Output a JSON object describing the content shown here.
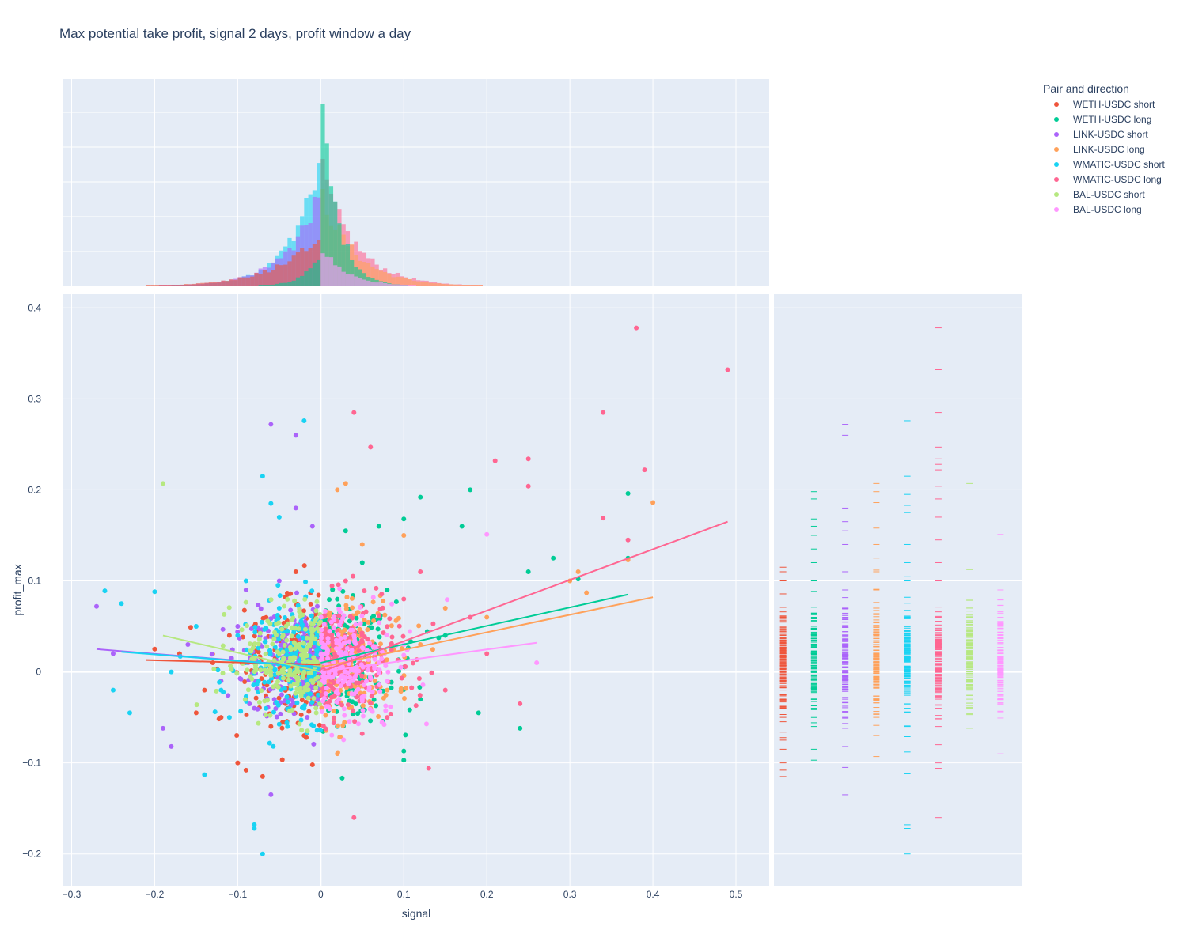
{
  "title": "Max potential take profit, signal 2 days, profit window a day",
  "legend": {
    "title": "Pair and direction",
    "items": [
      {
        "label": "WETH-USDC short",
        "color": "#EF553B"
      },
      {
        "label": "WETH-USDC long",
        "color": "#00CC96"
      },
      {
        "label": "LINK-USDC short",
        "color": "#AB63FA"
      },
      {
        "label": "LINK-USDC long",
        "color": "#FFA15A"
      },
      {
        "label": "WMATIC-USDC short",
        "color": "#19D3F3"
      },
      {
        "label": "WMATIC-USDC long",
        "color": "#FF6692"
      },
      {
        "label": "BAL-USDC short",
        "color": "#B6E880"
      },
      {
        "label": "BAL-USDC long",
        "color": "#FF97FF"
      }
    ]
  },
  "chart_data": {
    "type": "scatter",
    "xlabel": "signal",
    "ylabel": "profit_max",
    "xlim": [
      -0.31,
      0.54
    ],
    "ylim": [
      -0.235,
      0.415
    ],
    "xticks": [
      "−0.3",
      "−0.2",
      "−0.1",
      "0",
      "0.1",
      "0.2",
      "0.3",
      "0.4",
      "0.5"
    ],
    "xtick_values": [
      -0.3,
      -0.2,
      -0.1,
      0,
      0.1,
      0.2,
      0.3,
      0.4,
      0.5
    ],
    "yticks": [
      "−0.2",
      "−0.1",
      "0",
      "0.1",
      "0.2",
      "0.3",
      "0.4"
    ],
    "ytick_values": [
      -0.2,
      -0.1,
      0,
      0.1,
      0.2,
      0.3,
      0.4
    ],
    "grid": true,
    "marginal_x": "histogram",
    "marginal_y": "rug",
    "series": [
      {
        "name": "WETH-USDC short",
        "color": "#EF553B",
        "side": "short",
        "trend": [
          [
            -0.21,
            0.013
          ],
          [
            0.0,
            0.008
          ]
        ],
        "points": [
          [
            -0.2,
            0.025
          ],
          [
            -0.17,
            0.02
          ],
          [
            -0.15,
            -0.045
          ],
          [
            -0.12,
            -0.05
          ],
          [
            -0.1,
            -0.1
          ],
          [
            -0.09,
            -0.108
          ],
          [
            -0.07,
            -0.115
          ],
          [
            -0.06,
            -0.06
          ],
          [
            -0.04,
            -0.04
          ],
          [
            -0.03,
            0.11
          ],
          [
            -0.02,
            -0.07
          ],
          [
            -0.01,
            -0.102
          ],
          [
            -0.11,
            0.04
          ],
          [
            -0.08,
            0.03
          ],
          [
            -0.05,
            0.06
          ],
          [
            -0.13,
            0.01
          ],
          [
            -0.09,
            -0.03
          ],
          [
            -0.02,
            0.02
          ],
          [
            -0.06,
            -0.01
          ],
          [
            -0.14,
            -0.02
          ],
          [
            -0.04,
            0.085
          ]
        ],
        "rug": [
          0.115,
          0.11,
          0.1,
          0.08,
          0.06,
          0.04,
          0.02,
          0.0,
          -0.02,
          -0.04,
          -0.05,
          -0.075,
          -0.085,
          -0.1,
          -0.108,
          -0.115
        ]
      },
      {
        "name": "WETH-USDC long",
        "color": "#00CC96",
        "side": "long",
        "trend": [
          [
            0.0,
            0.01
          ],
          [
            0.37,
            0.085
          ]
        ],
        "points": [
          [
            0.37,
            0.196
          ],
          [
            0.37,
            0.125
          ],
          [
            0.31,
            0.102
          ],
          [
            0.28,
            0.125
          ],
          [
            0.25,
            0.11
          ],
          [
            0.24,
            -0.062
          ],
          [
            0.17,
            0.16
          ],
          [
            0.12,
            0.192
          ],
          [
            0.1,
            0.168
          ],
          [
            0.1,
            -0.087
          ],
          [
            0.1,
            -0.097
          ],
          [
            0.07,
            0.16
          ],
          [
            0.03,
            0.155
          ],
          [
            0.18,
            0.2
          ],
          [
            0.19,
            -0.045
          ],
          [
            0.15,
            0.04
          ],
          [
            0.12,
            -0.03
          ],
          [
            0.05,
            0.12
          ],
          [
            0.08,
            0.09
          ],
          [
            0.02,
            -0.06
          ],
          [
            0.06,
            0.03
          ]
        ],
        "rug": [
          0.198,
          0.19,
          0.168,
          0.16,
          0.15,
          0.135,
          0.12,
          0.1,
          0.08,
          0.06,
          0.04,
          0.02,
          0.0,
          -0.02,
          -0.04,
          -0.06,
          -0.085,
          -0.097
        ]
      },
      {
        "name": "LINK-USDC short",
        "color": "#AB63FA",
        "side": "short",
        "trend": [
          [
            -0.27,
            0.025
          ],
          [
            0.0,
            0.005
          ]
        ],
        "points": [
          [
            -0.27,
            0.072
          ],
          [
            -0.25,
            0.02
          ],
          [
            -0.19,
            -0.062
          ],
          [
            -0.18,
            -0.082
          ],
          [
            -0.06,
            0.272
          ],
          [
            -0.03,
            0.26
          ],
          [
            -0.06,
            -0.135
          ],
          [
            -0.03,
            0.18
          ],
          [
            -0.01,
            0.16
          ],
          [
            -0.1,
            0.05
          ],
          [
            -0.08,
            -0.04
          ],
          [
            -0.05,
            0.1
          ],
          [
            -0.12,
            -0.01
          ],
          [
            -0.04,
            -0.03
          ],
          [
            -0.02,
            0.06
          ],
          [
            -0.16,
            0.03
          ],
          [
            -0.09,
            0.09
          ]
        ],
        "rug": [
          0.272,
          0.26,
          0.18,
          0.165,
          0.155,
          0.14,
          0.11,
          0.09,
          0.07,
          0.05,
          0.03,
          0.01,
          -0.01,
          -0.03,
          -0.05,
          -0.062,
          -0.082,
          -0.105,
          -0.135
        ]
      },
      {
        "name": "LINK-USDC long",
        "color": "#FFA15A",
        "side": "long",
        "trend": [
          [
            0.0,
            0.005
          ],
          [
            0.4,
            0.082
          ]
        ],
        "points": [
          [
            0.4,
            0.186
          ],
          [
            0.37,
            0.123
          ],
          [
            0.31,
            0.11
          ],
          [
            0.3,
            0.1
          ],
          [
            0.32,
            0.087
          ],
          [
            0.03,
            0.207
          ],
          [
            0.02,
            0.2
          ],
          [
            0.1,
            0.15
          ],
          [
            0.05,
            0.14
          ],
          [
            0.15,
            0.07
          ],
          [
            0.08,
            -0.02
          ],
          [
            0.04,
            0.05
          ],
          [
            0.12,
            0.03
          ],
          [
            0.06,
            -0.04
          ],
          [
            0.2,
            0.06
          ],
          [
            0.02,
            -0.09
          ]
        ],
        "rug": [
          0.207,
          0.198,
          0.186,
          0.158,
          0.14,
          0.125,
          0.11,
          0.09,
          0.07,
          0.05,
          0.03,
          0.01,
          -0.01,
          -0.03,
          -0.05,
          -0.07,
          -0.093
        ]
      },
      {
        "name": "WMATIC-USDC short",
        "color": "#19D3F3",
        "side": "short",
        "trend": [
          [
            -0.24,
            0.022
          ],
          [
            0.0,
            0.005
          ]
        ],
        "points": [
          [
            -0.26,
            0.089
          ],
          [
            -0.24,
            0.075
          ],
          [
            -0.25,
            -0.02
          ],
          [
            -0.23,
            -0.045
          ],
          [
            -0.2,
            0.088
          ],
          [
            -0.14,
            -0.113
          ],
          [
            -0.07,
            0.215
          ],
          [
            -0.02,
            0.276
          ],
          [
            -0.08,
            -0.168
          ],
          [
            -0.08,
            -0.172
          ],
          [
            -0.07,
            -0.2
          ],
          [
            -0.06,
            0.185
          ],
          [
            -0.05,
            0.17
          ],
          [
            -0.1,
            0.04
          ],
          [
            -0.15,
            0.05
          ],
          [
            -0.12,
            -0.02
          ],
          [
            -0.04,
            -0.06
          ],
          [
            -0.03,
            0.03
          ],
          [
            -0.09,
            0.1
          ],
          [
            -0.18,
            0.0
          ],
          [
            -0.02,
            -0.04
          ],
          [
            -0.11,
            -0.05
          ],
          [
            -0.05,
            0.07
          ]
        ],
        "rug": [
          0.276,
          0.215,
          0.195,
          0.183,
          0.175,
          0.14,
          0.12,
          0.1,
          0.08,
          0.06,
          0.04,
          0.02,
          0.0,
          -0.02,
          -0.04,
          -0.06,
          -0.088,
          -0.112,
          -0.168,
          -0.172,
          -0.2
        ]
      },
      {
        "name": "WMATIC-USDC long",
        "color": "#FF6692",
        "side": "long",
        "trend": [
          [
            0.0,
            0.0
          ],
          [
            0.49,
            0.165
          ]
        ],
        "points": [
          [
            0.38,
            0.378
          ],
          [
            0.49,
            0.332
          ],
          [
            0.34,
            0.285
          ],
          [
            0.04,
            0.285
          ],
          [
            0.06,
            0.247
          ],
          [
            0.25,
            0.234
          ],
          [
            0.21,
            0.232
          ],
          [
            0.39,
            0.222
          ],
          [
            0.25,
            0.204
          ],
          [
            0.34,
            0.169
          ],
          [
            0.37,
            0.145
          ],
          [
            0.13,
            -0.106
          ],
          [
            0.04,
            -0.16
          ],
          [
            0.24,
            -0.035
          ],
          [
            0.18,
            0.06
          ],
          [
            0.1,
            0.08
          ],
          [
            0.05,
            0.04
          ],
          [
            0.15,
            -0.02
          ],
          [
            0.08,
            -0.05
          ],
          [
            0.03,
            0.1
          ],
          [
            0.2,
            0.02
          ],
          [
            0.12,
            0.11
          ]
        ],
        "rug": [
          0.378,
          0.332,
          0.285,
          0.247,
          0.234,
          0.228,
          0.222,
          0.204,
          0.19,
          0.17,
          0.145,
          0.12,
          0.1,
          0.08,
          0.06,
          0.04,
          0.02,
          0.0,
          -0.02,
          -0.04,
          -0.06,
          -0.08,
          -0.1,
          -0.106,
          -0.16
        ]
      },
      {
        "name": "BAL-USDC short",
        "color": "#B6E880",
        "side": "short",
        "trend": [
          [
            -0.19,
            0.04
          ],
          [
            0.0,
            0.0
          ]
        ],
        "points": [
          [
            -0.19,
            0.207
          ],
          [
            -0.05,
            0.02
          ],
          [
            -0.02,
            0.0
          ],
          [
            -0.08,
            0.01
          ],
          [
            -0.03,
            0.03
          ],
          [
            -0.01,
            -0.01
          ],
          [
            -0.06,
            0.005
          ]
        ],
        "rug": [
          0.207,
          0.08,
          0.07,
          0.06,
          0.04,
          0.03,
          0.02,
          0.01,
          0.0,
          -0.01,
          -0.02,
          -0.03,
          -0.047,
          -0.062
        ]
      },
      {
        "name": "BAL-USDC long",
        "color": "#FF97FF",
        "side": "long",
        "trend": [
          [
            0.0,
            0.0
          ],
          [
            0.26,
            0.032
          ]
        ],
        "points": [
          [
            0.2,
            0.151
          ],
          [
            0.26,
            0.01
          ],
          [
            0.05,
            0.02
          ],
          [
            0.03,
            0.0
          ],
          [
            0.07,
            0.01
          ],
          [
            0.02,
            -0.02
          ],
          [
            0.1,
            0.03
          ],
          [
            0.04,
            0.04
          ]
        ],
        "rug": [
          0.151,
          0.09,
          0.066,
          0.06,
          0.05,
          0.04,
          0.03,
          0.02,
          0.01,
          0.0,
          -0.01,
          -0.02,
          -0.03,
          -0.035,
          -0.09
        ]
      }
    ]
  }
}
